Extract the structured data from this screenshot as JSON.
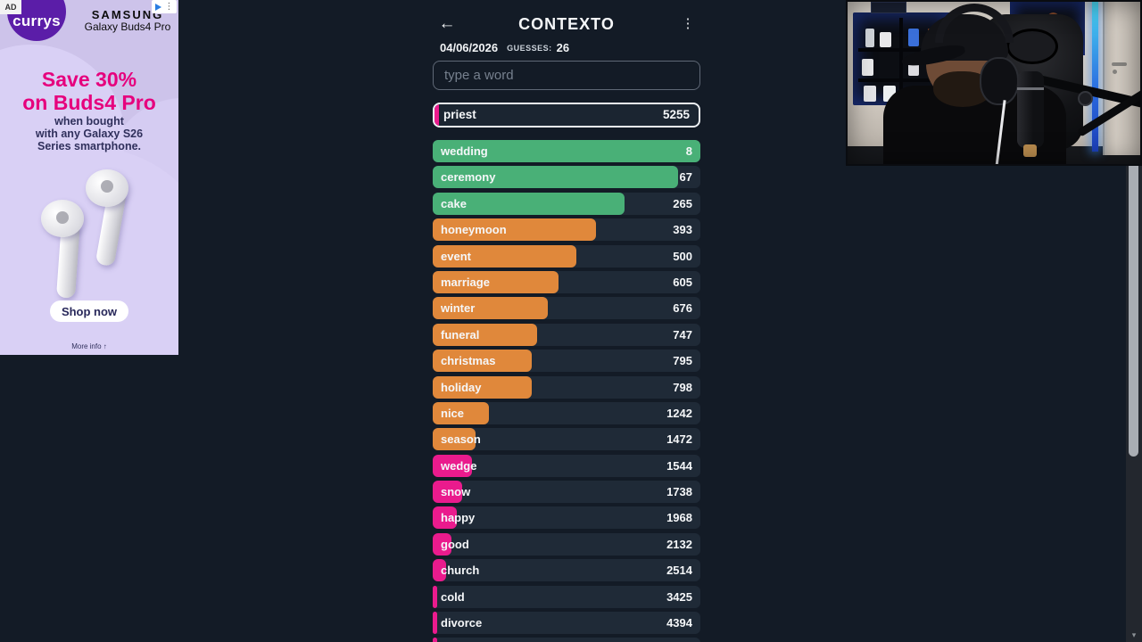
{
  "ad": {
    "badge": "AD",
    "brand": "currys",
    "sponsor": "SAMSUNG",
    "product": "Galaxy Buds4 Pro",
    "headline_line1": "Save 30%",
    "headline_line2": "on Buds4 Pro",
    "body_line1": "when bought",
    "body_line2": "with any Galaxy S26",
    "body_line3": "Series smartphone.",
    "cta": "Shop now",
    "more_info": "More info ↑",
    "colors": {
      "background": "#cdc3ea",
      "brand_purple": "#5b1da8",
      "headline_pink": "#e6007d",
      "body_navy": "#30305c"
    }
  },
  "game": {
    "title": "CONTEXTO",
    "back_icon": "←",
    "menu_icon": "⋮",
    "date": "04/06/2026",
    "guesses_label": "GUESSES:",
    "guesses_count": "26",
    "input_placeholder": "type a word",
    "current_guess": {
      "word": "priest",
      "rank": "5255",
      "tier": "pink",
      "bar_pct": 1.8
    },
    "tier_colors": {
      "green": "#49b077",
      "orange": "#e0883b",
      "pink": "#ea1b8d"
    },
    "rows": [
      {
        "word": "wedding",
        "rank": "8",
        "tier": "green",
        "pct": 100
      },
      {
        "word": "ceremony",
        "rank": "67",
        "tier": "green",
        "pct": 91.5
      },
      {
        "word": "cake",
        "rank": "265",
        "tier": "green",
        "pct": 71.5
      },
      {
        "word": "honeymoon",
        "rank": "393",
        "tier": "orange",
        "pct": 61
      },
      {
        "word": "event",
        "rank": "500",
        "tier": "orange",
        "pct": 53.5
      },
      {
        "word": "marriage",
        "rank": "605",
        "tier": "orange",
        "pct": 47
      },
      {
        "word": "winter",
        "rank": "676",
        "tier": "orange",
        "pct": 43
      },
      {
        "word": "funeral",
        "rank": "747",
        "tier": "orange",
        "pct": 39
      },
      {
        "word": "christmas",
        "rank": "795",
        "tier": "orange",
        "pct": 37
      },
      {
        "word": "holiday",
        "rank": "798",
        "tier": "orange",
        "pct": 37
      },
      {
        "word": "nice",
        "rank": "1242",
        "tier": "orange",
        "pct": 21
      },
      {
        "word": "season",
        "rank": "1472",
        "tier": "orange",
        "pct": 16
      },
      {
        "word": "wedge",
        "rank": "1544",
        "tier": "pink",
        "pct": 14.5
      },
      {
        "word": "snow",
        "rank": "1738",
        "tier": "pink",
        "pct": 11
      },
      {
        "word": "happy",
        "rank": "1968",
        "tier": "pink",
        "pct": 9
      },
      {
        "word": "good",
        "rank": "2132",
        "tier": "pink",
        "pct": 7
      },
      {
        "word": "church",
        "rank": "2514",
        "tier": "pink",
        "pct": 5
      },
      {
        "word": "cold",
        "rank": "3425",
        "tier": "pink",
        "pct": 1.8
      },
      {
        "word": "divorce",
        "rank": "4394",
        "tier": "pink",
        "pct": 1.8
      },
      {
        "word": "",
        "rank": "",
        "tier": "pink",
        "pct": 1.8
      }
    ]
  },
  "scrollbar": {
    "down_arrow": "▾"
  }
}
